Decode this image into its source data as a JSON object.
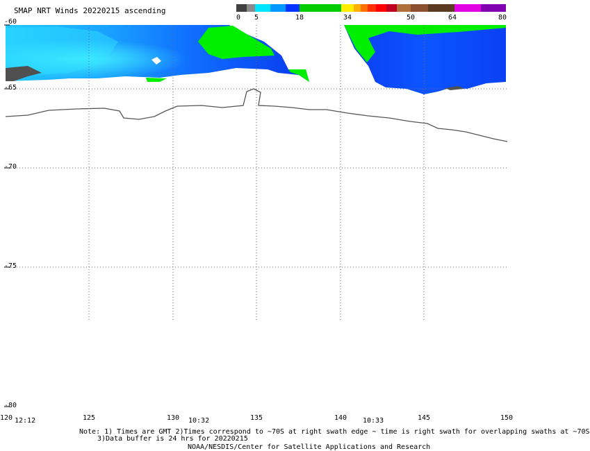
{
  "title": "SMAP NRT Winds 20220215 ascending",
  "colorbar": {
    "tick_labels": [
      "0",
      "5",
      "18",
      "34",
      "50",
      "64",
      "80"
    ],
    "colors": [
      "#404040",
      "#8a8a8a",
      "#00e5ff",
      "#0099ff",
      "#0033ff",
      "#00cc00",
      "#ffff00",
      "#ff9900",
      "#ff3300",
      "#ff0000",
      "#b3001a",
      "#a0522d",
      "#6b3a1f",
      "#d000ff",
      "#8000c0"
    ]
  },
  "lat_labels": [
    "-60",
    "-65",
    "-70",
    "-75",
    "-80"
  ],
  "lon_labels": [
    "120",
    "125",
    "130",
    "135",
    "140",
    "145",
    "150"
  ],
  "time_labels": [
    "12:12",
    "10:32",
    "10:33"
  ],
  "notes": {
    "line1": "Note: 1) Times are GMT 2)Times correspond to ~70S at right swath edge ~ time is right swath for overlapping swaths at ~70S",
    "line2": "3)Data buffer is 24 hrs for 20220215",
    "credit": "NOAA/NESDIS/Center for Satellite Applications and Research"
  },
  "map_colors": {
    "light_wind": "#33ddff",
    "moderate_wind": "#0066ff",
    "strong_wind": "#0022dd",
    "gale": "#00ee00",
    "calm": "#505050",
    "coastline": "#555555",
    "grid": "#666666"
  }
}
